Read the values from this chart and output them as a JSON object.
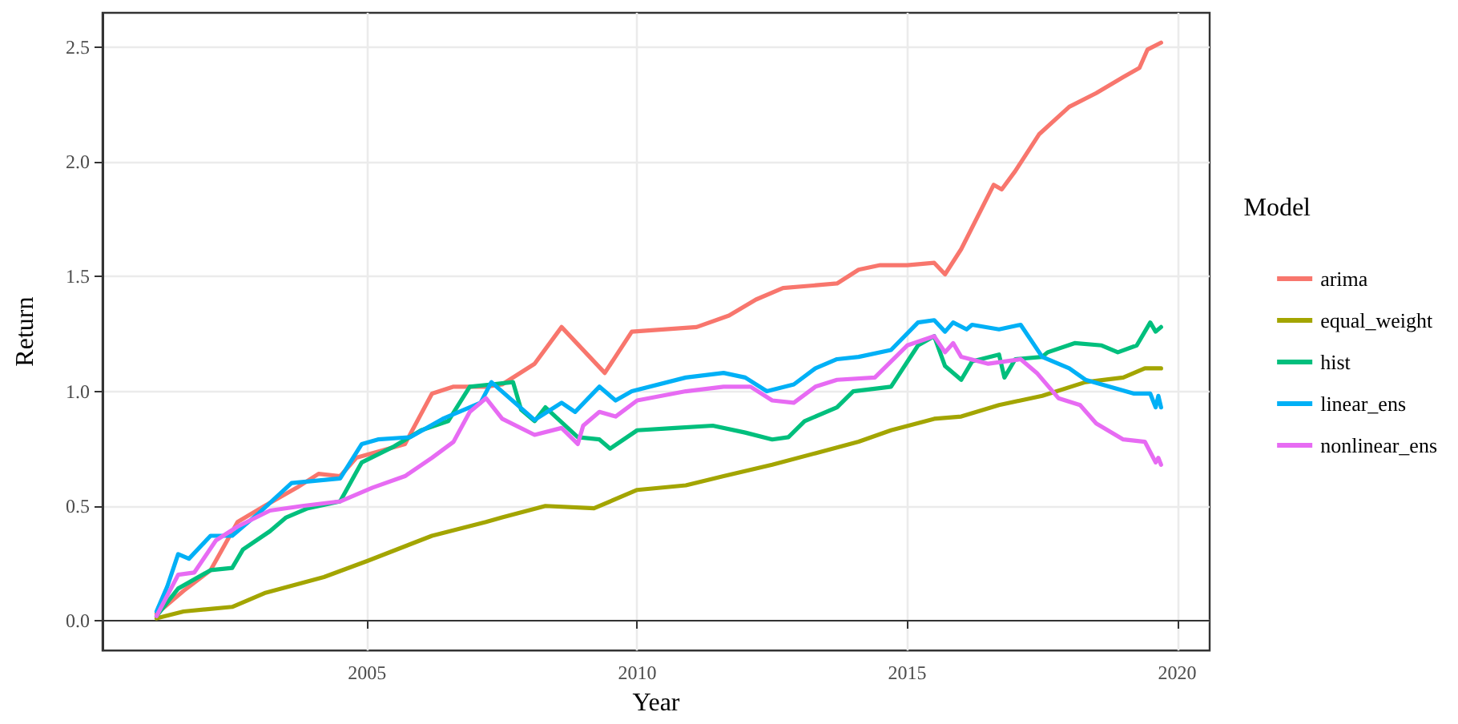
{
  "chart_data": {
    "type": "line",
    "xlabel": "Year",
    "ylabel": "Return",
    "legend_title": "Model",
    "legend": "right",
    "grid": true,
    "marker": "none",
    "line_style": "solid",
    "xlim": [
      2000.1,
      2020.6
    ],
    "xticks": [
      2005,
      2010,
      2015,
      2020
    ],
    "ylim": [
      -0.13,
      2.65
    ],
    "yticks": [
      {
        "value": 0,
        "label": "0.0"
      },
      0.5,
      {
        "value": 1,
        "label": "1.0"
      },
      1.5,
      {
        "value": 2,
        "label": "2.0"
      },
      2.5
    ],
    "series": [
      {
        "name": "arima",
        "color": "#f8766d",
        "x": [
          2001.1,
          2001.6,
          2002.1,
          2002.6,
          2003.1,
          2003.7,
          2004.1,
          2004.5,
          2004.8,
          2005.7,
          2006.2,
          2006.6,
          2007.2,
          2007.5,
          2008.1,
          2008.6,
          2009.4,
          2009.9,
          2011.1,
          2011.7,
          2012.2,
          2012.7,
          2013.7,
          2014.1,
          2014.5,
          2015.0,
          2015.5,
          2015.7,
          2016.0,
          2016.6,
          2016.75,
          2017.0,
          2017.44,
          2018.0,
          2018.5,
          2019.0,
          2019.3,
          2019.45,
          2019.7
        ],
        "values": [
          0.03,
          0.13,
          0.22,
          0.43,
          0.5,
          0.58,
          0.64,
          0.63,
          0.71,
          0.77,
          0.99,
          1.02,
          1.02,
          1.03,
          1.12,
          1.28,
          1.08,
          1.26,
          1.28,
          1.33,
          1.4,
          1.45,
          1.47,
          1.53,
          1.55,
          1.55,
          1.56,
          1.51,
          1.62,
          1.9,
          1.88,
          1.96,
          2.12,
          2.24,
          2.3,
          2.37,
          2.41,
          2.49,
          2.52
        ]
      },
      {
        "name": "equal_weight",
        "color": "#a3a500",
        "x": [
          2001.1,
          2001.6,
          2002.5,
          2003.1,
          2004.2,
          2005.0,
          2006.2,
          2007.2,
          2007.5,
          2008.3,
          2009.2,
          2010.0,
          2010.9,
          2011.6,
          2012.5,
          2013.3,
          2014.1,
          2014.7,
          2015.5,
          2016.0,
          2016.7,
          2017.5,
          2018.3,
          2019.0,
          2019.4,
          2019.7
        ],
        "values": [
          0.01,
          0.04,
          0.06,
          0.12,
          0.19,
          0.26,
          0.37,
          0.43,
          0.45,
          0.5,
          0.49,
          0.57,
          0.59,
          0.63,
          0.68,
          0.73,
          0.78,
          0.83,
          0.88,
          0.89,
          0.94,
          0.98,
          1.04,
          1.06,
          1.1,
          1.1
        ]
      },
      {
        "name": "hist",
        "color": "#00bf7d",
        "x": [
          2001.1,
          2001.5,
          2002.1,
          2002.5,
          2002.7,
          2003.2,
          2003.5,
          2003.9,
          2004.5,
          2004.9,
          2005.5,
          2006.0,
          2006.5,
          2006.9,
          2007.3,
          2007.7,
          2007.85,
          2008.1,
          2008.3,
          2008.9,
          2009.3,
          2009.5,
          2010.0,
          2010.7,
          2011.4,
          2012.0,
          2012.5,
          2012.8,
          2013.1,
          2013.7,
          2014.0,
          2014.7,
          2015.2,
          2015.5,
          2015.7,
          2016.0,
          2016.2,
          2016.7,
          2016.8,
          2017.0,
          2017.5,
          2017.6,
          2018.1,
          2018.6,
          2018.9,
          2019.25,
          2019.5,
          2019.6,
          2019.7
        ],
        "values": [
          0.02,
          0.14,
          0.22,
          0.23,
          0.31,
          0.39,
          0.45,
          0.49,
          0.52,
          0.69,
          0.76,
          0.83,
          0.87,
          1.02,
          1.03,
          1.04,
          0.92,
          0.87,
          0.93,
          0.8,
          0.79,
          0.75,
          0.83,
          0.84,
          0.85,
          0.82,
          0.79,
          0.8,
          0.87,
          0.93,
          1.0,
          1.02,
          1.2,
          1.24,
          1.11,
          1.05,
          1.13,
          1.16,
          1.06,
          1.14,
          1.15,
          1.17,
          1.21,
          1.2,
          1.17,
          1.2,
          1.3,
          1.26,
          1.28
        ]
      },
      {
        "name": "linear_ens",
        "color": "#00b0f6",
        "x": [
          2001.1,
          2001.3,
          2001.5,
          2001.7,
          2002.1,
          2002.5,
          2003.0,
          2003.6,
          2004.5,
          2004.9,
          2005.2,
          2005.8,
          2006.4,
          2007.1,
          2007.3,
          2008.1,
          2008.6,
          2008.85,
          2009.3,
          2009.6,
          2009.9,
          2010.9,
          2011.6,
          2012.0,
          2012.4,
          2012.9,
          2013.3,
          2013.7,
          2014.1,
          2014.7,
          2015.2,
          2015.5,
          2015.7,
          2015.85,
          2016.1,
          2016.2,
          2016.7,
          2017.1,
          2017.5,
          2018.0,
          2018.3,
          2019.2,
          2019.5,
          2019.6,
          2019.65,
          2019.7
        ],
        "values": [
          0.04,
          0.15,
          0.29,
          0.27,
          0.37,
          0.37,
          0.47,
          0.6,
          0.62,
          0.77,
          0.79,
          0.8,
          0.88,
          0.95,
          1.04,
          0.875,
          0.95,
          0.91,
          1.02,
          0.96,
          1.0,
          1.06,
          1.08,
          1.06,
          1.0,
          1.03,
          1.1,
          1.14,
          1.15,
          1.18,
          1.3,
          1.31,
          1.26,
          1.3,
          1.27,
          1.29,
          1.27,
          1.29,
          1.15,
          1.1,
          1.05,
          0.99,
          0.99,
          0.93,
          0.98,
          0.93
        ]
      },
      {
        "name": "nonlinear_ens",
        "color": "#e76bf3",
        "x": [
          2001.1,
          2001.5,
          2001.8,
          2002.2,
          2002.6,
          2003.2,
          2003.8,
          2004.5,
          2005.1,
          2005.7,
          2006.2,
          2006.6,
          2006.9,
          2007.2,
          2007.5,
          2008.1,
          2008.6,
          2008.9,
          2009.0,
          2009.3,
          2009.6,
          2010.0,
          2010.9,
          2011.6,
          2012.1,
          2012.5,
          2012.9,
          2013.3,
          2013.7,
          2014.4,
          2015.0,
          2015.5,
          2015.7,
          2015.85,
          2016.0,
          2016.5,
          2017.1,
          2017.4,
          2017.8,
          2018.2,
          2018.5,
          2019.0,
          2019.4,
          2019.6,
          2019.65,
          2019.7
        ],
        "values": [
          0.02,
          0.2,
          0.21,
          0.35,
          0.41,
          0.48,
          0.5,
          0.52,
          0.58,
          0.63,
          0.71,
          0.78,
          0.91,
          0.97,
          0.88,
          0.81,
          0.84,
          0.77,
          0.85,
          0.91,
          0.89,
          0.96,
          1.0,
          1.02,
          1.02,
          0.96,
          0.95,
          1.02,
          1.05,
          1.06,
          1.2,
          1.24,
          1.17,
          1.21,
          1.15,
          1.12,
          1.14,
          1.08,
          0.97,
          0.94,
          0.86,
          0.79,
          0.78,
          0.69,
          0.71,
          0.68
        ]
      }
    ]
  }
}
